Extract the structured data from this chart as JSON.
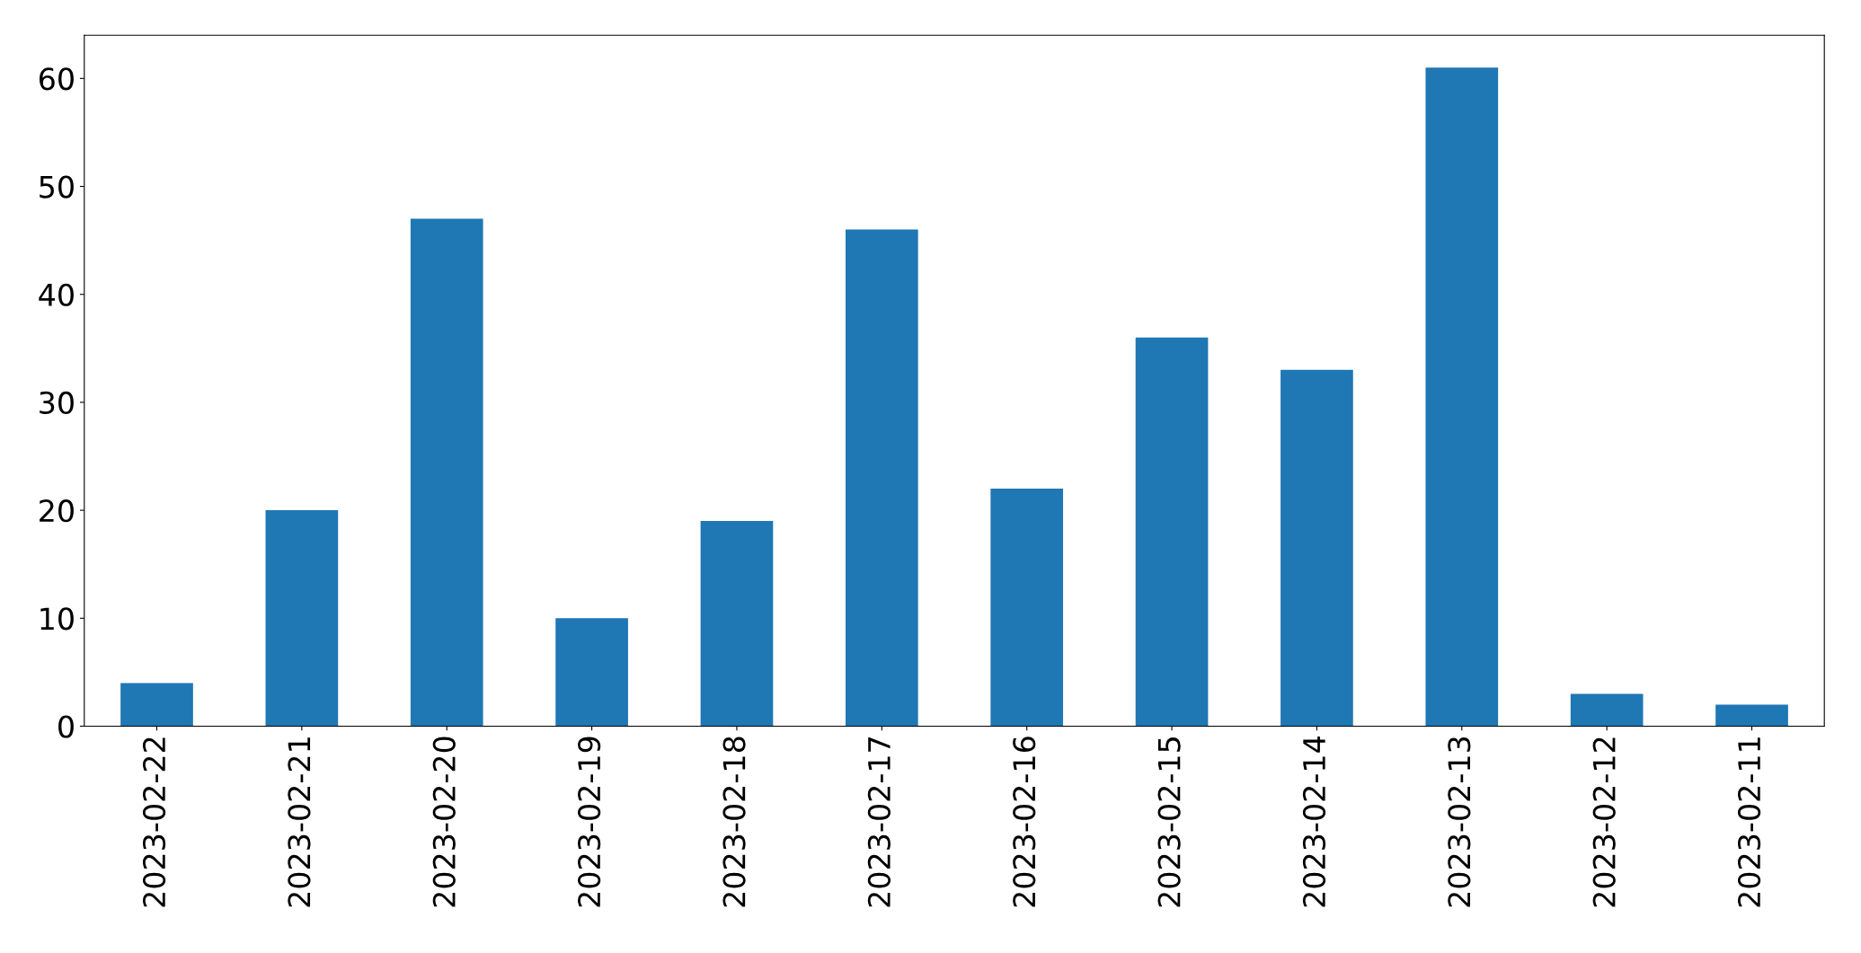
{
  "chart_data": {
    "type": "bar",
    "categories": [
      "2023-02-22",
      "2023-02-21",
      "2023-02-20",
      "2023-02-19",
      "2023-02-18",
      "2023-02-17",
      "2023-02-16",
      "2023-02-15",
      "2023-02-14",
      "2023-02-13",
      "2023-02-12",
      "2023-02-11"
    ],
    "values": [
      4,
      20,
      47,
      10,
      19,
      46,
      22,
      36,
      33,
      61,
      3,
      2
    ],
    "color": "#1f77b4",
    "ylim": [
      0,
      64
    ],
    "yticks": [
      0,
      10,
      20,
      30,
      40,
      50,
      60
    ],
    "grid": false,
    "legend": false
  }
}
